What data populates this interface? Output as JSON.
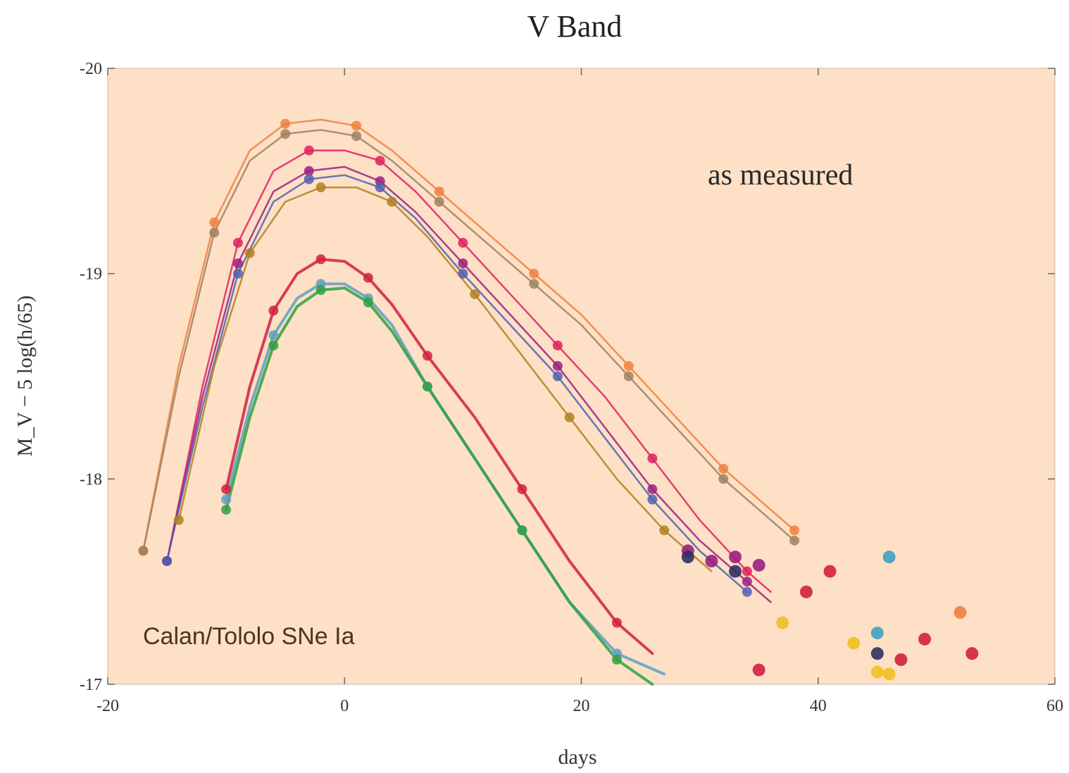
{
  "chart_data": {
    "type": "line",
    "title": "V Band",
    "xlabel": "days",
    "ylabel": "M_V − 5 log(h/65)",
    "xlim": [
      -20,
      60
    ],
    "ylim": [
      -20,
      -17
    ],
    "y_inverted": true,
    "x_ticks": [
      -20,
      0,
      20,
      40,
      60
    ],
    "x_tick_labels": [
      "-20",
      "0",
      "20",
      "40",
      "60"
    ],
    "y_ticks": [
      -20,
      -19,
      -18,
      -17
    ],
    "y_tick_labels": [
      "-20",
      "-19",
      "-18",
      "-17"
    ],
    "plot_background": "#fde0c6",
    "grid": false,
    "annotations": [
      "as measured",
      "Calan/Tololo SNe Ia"
    ],
    "series": [
      {
        "color": "#f08040",
        "x": [
          -17,
          -14,
          -11,
          -8,
          -5,
          -2,
          1,
          4,
          8,
          12,
          16,
          20,
          24,
          28,
          32,
          35,
          38
        ],
        "y": [
          -17.65,
          -18.55,
          -19.25,
          -19.6,
          -19.73,
          -19.75,
          -19.72,
          -19.6,
          -19.4,
          -19.2,
          -19.0,
          -18.8,
          -18.55,
          -18.3,
          -18.05,
          -17.9,
          -17.75
        ]
      },
      {
        "color": "#a08060",
        "x": [
          -17,
          -14,
          -11,
          -8,
          -5,
          -2,
          1,
          4,
          8,
          12,
          16,
          20,
          24,
          28,
          32,
          35,
          38
        ],
        "y": [
          -17.65,
          -18.5,
          -19.2,
          -19.55,
          -19.68,
          -19.7,
          -19.67,
          -19.55,
          -19.35,
          -19.15,
          -18.95,
          -18.75,
          -18.5,
          -18.25,
          -18.0,
          -17.85,
          -17.7
        ]
      },
      {
        "color": "#e02060",
        "x": [
          -15,
          -12,
          -9,
          -6,
          -3,
          0,
          3,
          6,
          10,
          14,
          18,
          22,
          26,
          30,
          34,
          36
        ],
        "y": [
          -17.6,
          -18.45,
          -19.15,
          -19.5,
          -19.6,
          -19.6,
          -19.55,
          -19.4,
          -19.15,
          -18.9,
          -18.65,
          -18.4,
          -18.1,
          -17.8,
          -17.55,
          -17.45
        ]
      },
      {
        "color": "#9a2080",
        "x": [
          -15,
          -12,
          -9,
          -6,
          -3,
          0,
          3,
          6,
          10,
          14,
          18,
          22,
          26,
          30,
          34,
          36
        ],
        "y": [
          -17.6,
          -18.4,
          -19.05,
          -19.4,
          -19.5,
          -19.52,
          -19.45,
          -19.3,
          -19.05,
          -18.8,
          -18.55,
          -18.25,
          -17.95,
          -17.7,
          -17.5,
          -17.4
        ]
      },
      {
        "color": "#5060b0",
        "x": [
          -15,
          -12,
          -9,
          -6,
          -3,
          0,
          3,
          6,
          10,
          14,
          18,
          22,
          26,
          30,
          34
        ],
        "y": [
          -17.6,
          -18.35,
          -19.0,
          -19.35,
          -19.46,
          -19.48,
          -19.42,
          -19.27,
          -19.0,
          -18.75,
          -18.5,
          -18.2,
          -17.9,
          -17.65,
          -17.45
        ]
      },
      {
        "color": "#b08020",
        "x": [
          -14,
          -11,
          -8,
          -5,
          -2,
          1,
          4,
          7,
          11,
          15,
          19,
          23,
          27,
          31
        ],
        "y": [
          -17.8,
          -18.55,
          -19.1,
          -19.35,
          -19.42,
          -19.42,
          -19.35,
          -19.18,
          -18.9,
          -18.6,
          -18.3,
          -18.0,
          -17.75,
          -17.55
        ]
      },
      {
        "color": "#d02040",
        "x": [
          -10,
          -8,
          -6,
          -4,
          -2,
          0,
          2,
          4,
          7,
          11,
          15,
          19,
          23,
          26
        ],
        "y": [
          -17.95,
          -18.45,
          -18.82,
          -19.0,
          -19.07,
          -19.06,
          -18.98,
          -18.85,
          -18.6,
          -18.3,
          -17.95,
          -17.6,
          -17.3,
          -17.15
        ]
      },
      {
        "color": "#60a0c0",
        "x": [
          -10,
          -8,
          -6,
          -4,
          -2,
          0,
          2,
          4,
          7,
          11,
          15,
          19,
          23,
          27
        ],
        "y": [
          -17.9,
          -18.35,
          -18.7,
          -18.88,
          -18.95,
          -18.95,
          -18.88,
          -18.75,
          -18.45,
          -18.1,
          -17.75,
          -17.4,
          -17.15,
          -17.05
        ]
      },
      {
        "color": "#30a040",
        "x": [
          -10,
          -8,
          -6,
          -4,
          -2,
          0,
          2,
          4,
          7,
          11,
          15,
          19,
          23,
          26
        ],
        "y": [
          -17.85,
          -18.3,
          -18.65,
          -18.84,
          -18.92,
          -18.93,
          -18.86,
          -18.72,
          -18.45,
          -18.1,
          -17.75,
          -17.4,
          -17.12,
          -17.0
        ]
      }
    ],
    "late_points": [
      {
        "color": "#d02040",
        "x": [
          41,
          47,
          49,
          53,
          35,
          39
        ],
        "y": [
          -17.55,
          -17.12,
          -17.22,
          -17.15,
          -17.07,
          -17.45
        ]
      },
      {
        "color": "#9a2080",
        "x": [
          33,
          29,
          35,
          31
        ],
        "y": [
          -17.62,
          -17.65,
          -17.58,
          -17.6
        ]
      },
      {
        "color": "#f0c020",
        "x": [
          43,
          45,
          46,
          37
        ],
        "y": [
          -17.2,
          -17.06,
          -17.05,
          -17.3
        ]
      },
      {
        "color": "#303060",
        "x": [
          45,
          33,
          29
        ],
        "y": [
          -17.15,
          -17.55,
          -17.62
        ]
      },
      {
        "color": "#40a0c0",
        "x": [
          45,
          46
        ],
        "y": [
          -17.25,
          -17.62
        ]
      },
      {
        "color": "#f08040",
        "x": [
          52
        ],
        "y": [
          -17.35
        ]
      }
    ]
  }
}
